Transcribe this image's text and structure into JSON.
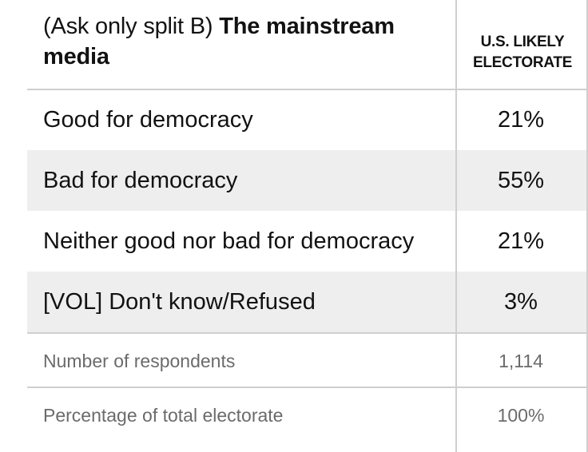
{
  "chart_data": {
    "type": "table",
    "title_prefix": "(Ask only split B)",
    "title_bold": "The mainstream media",
    "column_header_line1": "U.S. LIKELY",
    "column_header_line2": "ELECTORATE",
    "categories": [
      "Good for democracy",
      "Bad for democracy",
      "Neither good nor bad for democracy",
      "[VOL] Don't know/Refused"
    ],
    "values": [
      21,
      55,
      21,
      3
    ],
    "value_labels": [
      "21%",
      "55%",
      "21%",
      "3%"
    ],
    "footer": [
      {
        "label": "Number of respondents",
        "value": "1,114"
      },
      {
        "label": "Percentage of total electorate",
        "value": "100%"
      }
    ]
  }
}
